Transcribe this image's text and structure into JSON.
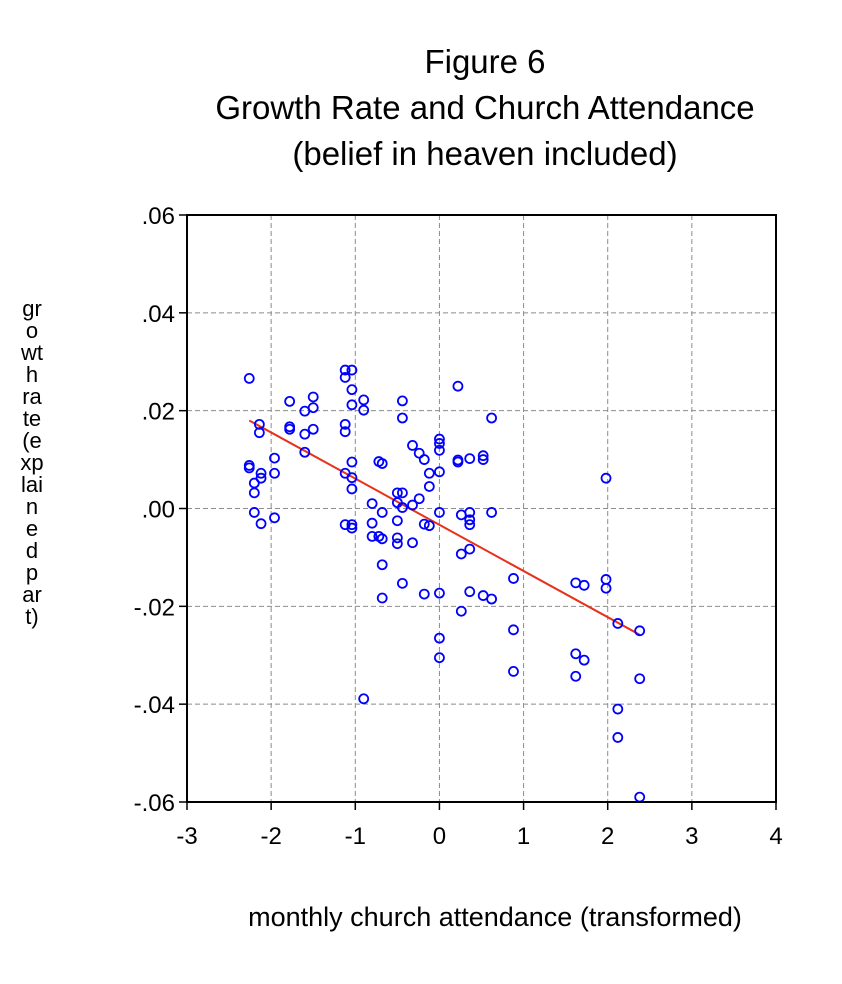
{
  "title": {
    "line1": "Figure 6",
    "line2": "Growth Rate and Church Attendance",
    "line3": "(belief in heaven included)"
  },
  "chart_data": {
    "type": "scatter",
    "title": "Figure 6 Growth Rate and Church Attendance (belief in heaven included)",
    "xlabel": "monthly church attendance (transformed)",
    "ylabel": "growth rate (explained part)",
    "xlim": [
      -3,
      4
    ],
    "ylim": [
      -0.06,
      0.06
    ],
    "x_ticks": [
      -3,
      -2,
      -1,
      0,
      1,
      2,
      3,
      4
    ],
    "x_tick_labels": [
      "-3",
      "-2",
      "-1",
      "0",
      "1",
      "2",
      "3",
      "4"
    ],
    "y_ticks": [
      0.06,
      0.04,
      0.02,
      0.0,
      -0.02,
      -0.04,
      -0.06
    ],
    "y_tick_labels": [
      ".06",
      ".04",
      ".02",
      ".00",
      "-.02",
      "-.04",
      "-.06"
    ],
    "grid": true,
    "series": [
      {
        "type": "scatter",
        "color": "#0000ff",
        "points": [
          [
            -2.26,
            0.0266
          ],
          [
            -2.26,
            0.0088
          ],
          [
            -2.26,
            0.0083
          ],
          [
            -2.2,
            0.0052
          ],
          [
            -2.2,
            0.0032
          ],
          [
            -2.2,
            -0.0008
          ],
          [
            -2.14,
            0.0172
          ],
          [
            -2.14,
            0.0155
          ],
          [
            -2.12,
            0.0072
          ],
          [
            -2.12,
            0.0062
          ],
          [
            -2.12,
            -0.0031
          ],
          [
            -1.96,
            0.0103
          ],
          [
            -1.96,
            0.0072
          ],
          [
            -1.96,
            -0.0019
          ],
          [
            -1.78,
            0.0219
          ],
          [
            -1.78,
            0.0167
          ],
          [
            -1.78,
            0.0162
          ],
          [
            -1.6,
            0.0199
          ],
          [
            -1.6,
            0.0152
          ],
          [
            -1.6,
            0.0115
          ],
          [
            -1.5,
            0.0228
          ],
          [
            -1.5,
            0.0206
          ],
          [
            -1.5,
            0.0162
          ],
          [
            -1.12,
            0.0283
          ],
          [
            -1.12,
            0.0268
          ],
          [
            -1.12,
            0.0172
          ],
          [
            -1.12,
            0.0157
          ],
          [
            -1.12,
            0.0072
          ],
          [
            -1.12,
            -0.0033
          ],
          [
            -1.04,
            0.0283
          ],
          [
            -1.04,
            0.0243
          ],
          [
            -1.04,
            0.0212
          ],
          [
            -1.04,
            0.0095
          ],
          [
            -1.04,
            0.0063
          ],
          [
            -1.04,
            0.004
          ],
          [
            -1.04,
            -0.0033
          ],
          [
            -1.04,
            -0.004
          ],
          [
            -0.9,
            0.0222
          ],
          [
            -0.9,
            0.0201
          ],
          [
            -0.9,
            -0.0389
          ],
          [
            -0.8,
            0.001
          ],
          [
            -0.8,
            -0.003
          ],
          [
            -0.8,
            -0.0057
          ],
          [
            -0.72,
            0.0096
          ],
          [
            -0.72,
            -0.0057
          ],
          [
            -0.68,
            0.0092
          ],
          [
            -0.68,
            -0.0008
          ],
          [
            -0.68,
            -0.0062
          ],
          [
            -0.68,
            -0.0115
          ],
          [
            -0.68,
            -0.0183
          ],
          [
            -0.5,
            0.0032
          ],
          [
            -0.5,
            0.0012
          ],
          [
            -0.5,
            -0.0025
          ],
          [
            -0.5,
            -0.006
          ],
          [
            -0.5,
            -0.0072
          ],
          [
            -0.44,
            0.022
          ],
          [
            -0.44,
            0.0185
          ],
          [
            -0.44,
            0.0032
          ],
          [
            -0.44,
            0.0002
          ],
          [
            -0.44,
            -0.0153
          ],
          [
            -0.32,
            0.0129
          ],
          [
            -0.32,
            0.0007
          ],
          [
            -0.32,
            -0.007
          ],
          [
            -0.24,
            0.0113
          ],
          [
            -0.24,
            0.002
          ],
          [
            -0.18,
            0.01
          ],
          [
            -0.18,
            -0.0032
          ],
          [
            -0.18,
            -0.0175
          ],
          [
            -0.12,
            0.0072
          ],
          [
            -0.12,
            0.0045
          ],
          [
            -0.12,
            -0.0035
          ],
          [
            0.0,
            0.0142
          ],
          [
            0.0,
            0.0133
          ],
          [
            0.0,
            0.0119
          ],
          [
            0.0,
            0.0075
          ],
          [
            0.0,
            -0.0008
          ],
          [
            0.0,
            -0.0173
          ],
          [
            0.0,
            -0.0265
          ],
          [
            0.0,
            -0.0305
          ],
          [
            0.22,
            0.025
          ],
          [
            0.22,
            0.0099
          ],
          [
            0.22,
            0.0095
          ],
          [
            0.26,
            -0.0013
          ],
          [
            0.26,
            -0.0093
          ],
          [
            0.26,
            -0.021
          ],
          [
            0.36,
            0.0102
          ],
          [
            0.36,
            -0.0008
          ],
          [
            0.36,
            -0.0023
          ],
          [
            0.36,
            -0.0033
          ],
          [
            0.36,
            -0.0083
          ],
          [
            0.36,
            -0.017
          ],
          [
            0.52,
            0.0108
          ],
          [
            0.52,
            0.01
          ],
          [
            0.52,
            -0.0178
          ],
          [
            0.62,
            0.0185
          ],
          [
            0.62,
            -0.0008
          ],
          [
            0.62,
            -0.0185
          ],
          [
            0.88,
            -0.0143
          ],
          [
            0.88,
            -0.0248
          ],
          [
            0.88,
            -0.0333
          ],
          [
            1.62,
            -0.0152
          ],
          [
            1.62,
            -0.0297
          ],
          [
            1.62,
            -0.0343
          ],
          [
            1.72,
            -0.0157
          ],
          [
            1.72,
            -0.031
          ],
          [
            1.98,
            0.0062
          ],
          [
            1.98,
            -0.0145
          ],
          [
            1.98,
            -0.0163
          ],
          [
            2.12,
            -0.0235
          ],
          [
            2.12,
            -0.041
          ],
          [
            2.12,
            -0.0468
          ],
          [
            2.38,
            -0.025
          ],
          [
            2.38,
            -0.0348
          ],
          [
            2.38,
            -0.059
          ]
        ]
      },
      {
        "type": "line",
        "color": "#e8311a",
        "points": [
          [
            -2.26,
            0.018
          ],
          [
            2.38,
            -0.0258
          ]
        ]
      }
    ]
  }
}
